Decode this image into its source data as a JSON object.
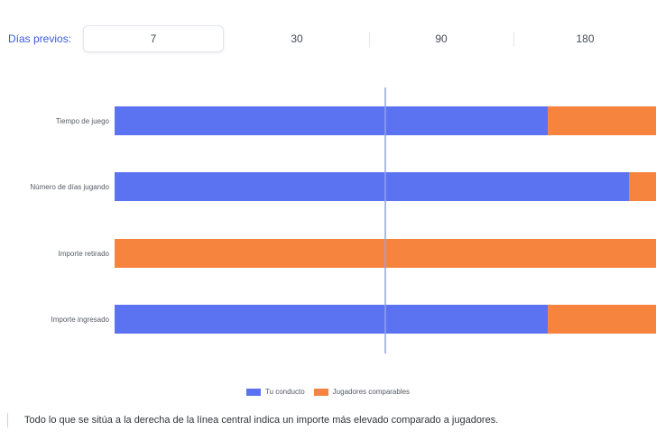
{
  "period_selector": {
    "label": "Días previos:",
    "options": [
      "7",
      "30",
      "90",
      "180"
    ],
    "selected": "7"
  },
  "colors": {
    "tu_conducto": "#5b73f0",
    "jugadores": "#f6843f",
    "center_line": "#8fa1f2"
  },
  "chart_data": {
    "type": "bar",
    "orientation": "horizontal",
    "stacked": true,
    "categories": [
      "Tiempo de juego",
      "Número de días jugando",
      "Importe retirado",
      "Importe ingresado"
    ],
    "series": [
      {
        "name": "Tu conducto",
        "values": [
          80,
          95,
          0,
          80
        ]
      },
      {
        "name": "Jugadores comparables",
        "values": [
          20,
          5,
          100,
          20
        ]
      }
    ],
    "xlim": [
      0,
      100
    ],
    "center_value": 50,
    "legend_position": "bottom",
    "grid": false
  },
  "footnote": "Todo lo que se sitúa a la derecha de la línea central indica un importe más elevado comparado a jugadores."
}
